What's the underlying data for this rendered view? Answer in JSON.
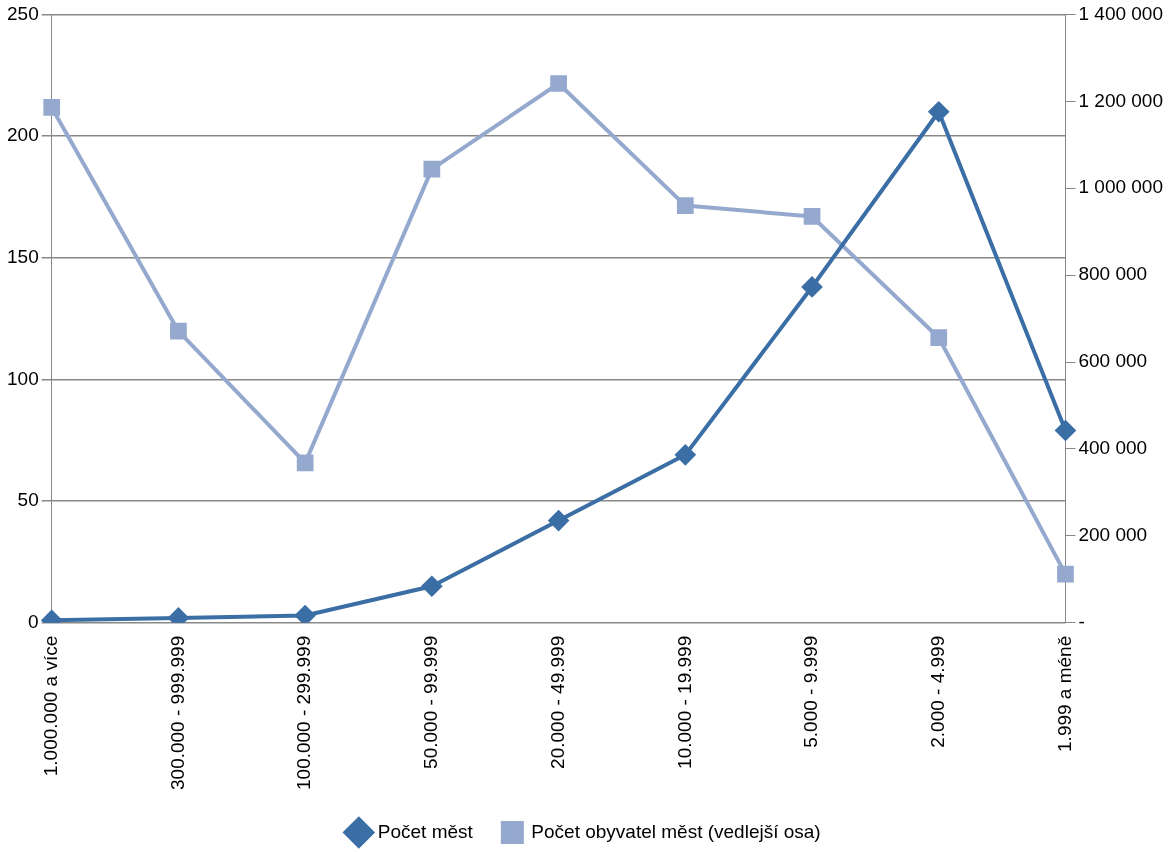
{
  "chart_data": {
    "type": "line",
    "categories": [
      "1.000.000 a více",
      "300.000 - 999.999",
      "100.000 - 299.999",
      "50.000 - 99.999",
      "20.000 - 49.999",
      "10.000 - 19.999",
      "5.000 - 9.999",
      "2.000 - 4.999",
      "1.999 a méně"
    ],
    "series": [
      {
        "name": "Počet měst",
        "color": "#3a6ea5",
        "marker": "diamond",
        "values": [
          1,
          2,
          3,
          15,
          42,
          69,
          138,
          210,
          79
        ]
      },
      {
        "name": "Počet obyvatel měst (vedlejší osa)",
        "color": "#95a9cf",
        "marker": "square",
        "axis": "y2",
        "values": [
          1186000,
          671000,
          368000,
          1044000,
          1241000,
          960000,
          935000,
          656000,
          112000
        ]
      }
    ],
    "ylim": [
      0,
      250
    ],
    "yticks": [
      0,
      50,
      100,
      150,
      200,
      250
    ],
    "y2lim": [
      0,
      1400000
    ],
    "y2ticks": [
      {
        "value": 0,
        "label": "-"
      },
      {
        "value": 200000,
        "label": "200 000"
      },
      {
        "value": 400000,
        "label": "400 000"
      },
      {
        "value": 600000,
        "label": "600 000"
      },
      {
        "value": 800000,
        "label": "800 000"
      },
      {
        "value": 1000000,
        "label": "1 000 000"
      },
      {
        "value": 1200000,
        "label": "1 200 000"
      },
      {
        "value": 1400000,
        "label": "1 400 000"
      }
    ],
    "grid": "y",
    "legend": "bottom",
    "line_style": "solid"
  }
}
